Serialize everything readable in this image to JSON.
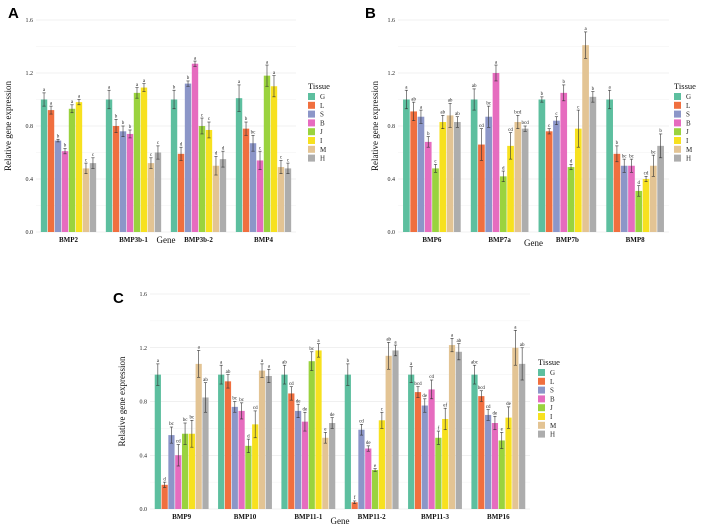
{
  "colors": {
    "G": "#5dbf9f",
    "L": "#f06f3f",
    "S": "#8c96c8",
    "B": "#e66cbf",
    "J": "#9ad33e",
    "I": "#f7e11f",
    "M": "#e3c494",
    "H": "#adadad"
  },
  "chart_data": [
    {
      "type": "bar",
      "panel": "A",
      "xlabel": "Gene",
      "ylabel": "Relative gene expression",
      "ylim": [
        0,
        1.6
      ],
      "yticks": [
        "0.0",
        "0.4",
        "0.8",
        "1.2",
        "1.6"
      ],
      "legend_title": "Tissue",
      "categories": [
        "BMP2",
        "BMP3b-1",
        "BMP3b-2",
        "BMP4"
      ],
      "series": [
        {
          "name": "G",
          "values": [
            1.0,
            1.0,
            1.0,
            1.01
          ],
          "err": [
            0.05,
            0.07,
            0.07,
            0.1
          ],
          "letters": [
            "a",
            "a",
            "b",
            "a"
          ]
        },
        {
          "name": "L",
          "values": [
            0.92,
            0.8,
            0.59,
            0.78
          ],
          "err": [
            0.03,
            0.05,
            0.05,
            0.05
          ],
          "letters": [
            "a",
            "b",
            "d",
            "b"
          ]
        },
        {
          "name": "S",
          "values": [
            0.69,
            0.76,
            1.12,
            0.67
          ],
          "err": [
            0.01,
            0.04,
            0.02,
            0.06
          ],
          "letters": [
            "b",
            "b",
            "b",
            "bc"
          ]
        },
        {
          "name": "B",
          "values": [
            0.61,
            0.74,
            1.27,
            0.54
          ],
          "err": [
            0.02,
            0.03,
            0.02,
            0.07
          ],
          "letters": [
            "b",
            "b",
            "a",
            "c"
          ]
        },
        {
          "name": "J",
          "values": [
            0.93,
            1.05,
            0.8,
            1.18
          ],
          "err": [
            0.03,
            0.04,
            0.06,
            0.08
          ],
          "letters": [
            "a",
            "a",
            "c",
            "a"
          ]
        },
        {
          "name": "I",
          "values": [
            0.98,
            1.09,
            0.77,
            1.1
          ],
          "err": [
            0.02,
            0.03,
            0.06,
            0.08
          ],
          "letters": [
            "a",
            "a",
            "c",
            "a"
          ]
        },
        {
          "name": "M",
          "values": [
            0.48,
            0.52,
            0.5,
            0.49
          ],
          "err": [
            0.04,
            0.04,
            0.07,
            0.05
          ],
          "letters": [
            "c",
            "c",
            "d",
            "c"
          ]
        },
        {
          "name": "H",
          "values": [
            0.52,
            0.6,
            0.55,
            0.48
          ],
          "err": [
            0.04,
            0.05,
            0.06,
            0.04
          ],
          "letters": [
            "c",
            "c",
            "d",
            "c"
          ]
        }
      ]
    },
    {
      "type": "bar",
      "panel": "B",
      "xlabel": "Gene",
      "ylabel": "Relative gene expression",
      "ylim": [
        0,
        1.6
      ],
      "yticks": [
        "0.0",
        "0.4",
        "0.8",
        "1.2",
        "1.6"
      ],
      "legend_title": "Tissue",
      "categories": [
        "BMP6",
        "BMP7a",
        "BMP7b",
        "BMP8"
      ],
      "series": [
        {
          "name": "G",
          "values": [
            1.0,
            1.0,
            1.0,
            1.0
          ],
          "err": [
            0.07,
            0.08,
            0.02,
            0.07
          ],
          "letters": [
            "a",
            "ab",
            "b",
            "a"
          ]
        },
        {
          "name": "L",
          "values": [
            0.91,
            0.66,
            0.76,
            0.59
          ],
          "err": [
            0.07,
            0.12,
            0.02,
            0.06
          ],
          "letters": [
            "ab",
            "cd",
            "c",
            "b"
          ]
        },
        {
          "name": "S",
          "values": [
            0.87,
            0.87,
            0.84,
            0.5
          ],
          "err": [
            0.05,
            0.08,
            0.03,
            0.05
          ],
          "letters": [
            "a",
            "bc",
            "c",
            "bc"
          ]
        },
        {
          "name": "B",
          "values": [
            0.68,
            1.2,
            1.05,
            0.5
          ],
          "err": [
            0.04,
            0.06,
            0.06,
            0.05
          ],
          "letters": [
            "b",
            "a",
            "b",
            "bc"
          ]
        },
        {
          "name": "J",
          "values": [
            0.48,
            0.42,
            0.49,
            0.31
          ],
          "err": [
            0.03,
            0.04,
            0.02,
            0.04
          ],
          "letters": [
            "c",
            "d",
            "d",
            "d"
          ]
        },
        {
          "name": "I",
          "values": [
            0.83,
            0.65,
            0.78,
            0.4
          ],
          "err": [
            0.05,
            0.1,
            0.14,
            0.02
          ],
          "letters": [
            "ab",
            "cd",
            "c",
            "cd"
          ]
        },
        {
          "name": "M",
          "values": [
            0.88,
            0.83,
            1.41,
            0.5
          ],
          "err": [
            0.09,
            0.05,
            0.1,
            0.08
          ],
          "letters": [
            "ab",
            "bcd",
            "a",
            "bc"
          ]
        },
        {
          "name": "H",
          "values": [
            0.83,
            0.78,
            1.02,
            0.65
          ],
          "err": [
            0.04,
            0.02,
            0.04,
            0.09
          ],
          "letters": [
            "ab",
            "bcd",
            "b",
            "b"
          ]
        }
      ]
    },
    {
      "type": "bar",
      "panel": "C",
      "xlabel": "Gene",
      "ylabel": "Relative gene expression",
      "ylim": [
        0,
        1.6
      ],
      "yticks": [
        "0.0",
        "0.4",
        "0.8",
        "1.2",
        "1.6"
      ],
      "legend_title": "Tissue",
      "categories": [
        "BMP9",
        "BMP10",
        "BMP11-1",
        "BMP11-2",
        "BMP11-3",
        "BMP16"
      ],
      "series": [
        {
          "name": "G",
          "values": [
            1.0,
            1.0,
            1.0,
            1.0,
            1.0,
            1.0
          ],
          "err": [
            0.08,
            0.07,
            0.07,
            0.08,
            0.06,
            0.07
          ],
          "letters": [
            "a",
            "a",
            "ab",
            "b",
            "a",
            "abc"
          ]
        },
        {
          "name": "L",
          "values": [
            0.18,
            0.95,
            0.86,
            0.05,
            0.87,
            0.84
          ],
          "err": [
            0.02,
            0.05,
            0.05,
            0.01,
            0.04,
            0.04
          ],
          "letters": [
            "d",
            "ab",
            "cd",
            "f",
            "bcd",
            "bcd"
          ]
        },
        {
          "name": "S",
          "values": [
            0.55,
            0.76,
            0.73,
            0.59,
            0.77,
            0.7
          ],
          "err": [
            0.06,
            0.04,
            0.05,
            0.04,
            0.05,
            0.04
          ],
          "letters": [
            "bc",
            "bc",
            "de",
            "cd",
            "de",
            "cd"
          ]
        },
        {
          "name": "B",
          "values": [
            0.4,
            0.73,
            0.65,
            0.45,
            0.89,
            0.64
          ],
          "err": [
            0.08,
            0.06,
            0.07,
            0.02,
            0.07,
            0.05
          ],
          "letters": [
            "cd",
            "bc",
            "de",
            "de",
            "cd",
            "de"
          ]
        },
        {
          "name": "J",
          "values": [
            0.56,
            0.47,
            1.1,
            0.29,
            0.53,
            0.51
          ],
          "err": [
            0.08,
            0.05,
            0.07,
            0.01,
            0.05,
            0.06
          ],
          "letters": [
            "bc",
            "d",
            "bc",
            "e",
            "f",
            "e"
          ]
        },
        {
          "name": "I",
          "values": [
            0.56,
            0.63,
            1.18,
            0.66,
            0.67,
            0.68
          ],
          "err": [
            0.1,
            0.1,
            0.05,
            0.06,
            0.08,
            0.08
          ],
          "letters": [
            "bc",
            "cd",
            "a",
            "c",
            "ef",
            "de"
          ]
        },
        {
          "name": "M",
          "values": [
            1.08,
            1.03,
            0.53,
            1.14,
            1.22,
            1.2
          ],
          "err": [
            0.1,
            0.05,
            0.04,
            0.1,
            0.05,
            0.13
          ],
          "letters": [
            "a",
            "a",
            "e",
            "ab",
            "a",
            "a"
          ]
        },
        {
          "name": "H",
          "values": [
            0.83,
            0.99,
            0.64,
            1.18,
            1.17,
            1.08
          ],
          "err": [
            0.11,
            0.05,
            0.04,
            0.04,
            0.06,
            0.12
          ],
          "letters": [
            "ab",
            "a",
            "de",
            "a",
            "ab",
            "ab"
          ]
        }
      ]
    }
  ]
}
